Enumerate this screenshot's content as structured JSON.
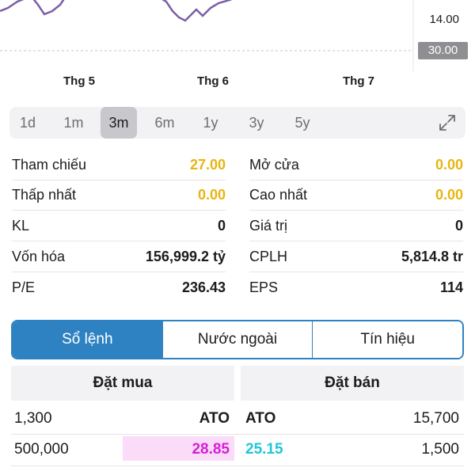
{
  "chart": {
    "y_labels": [
      "14.00"
    ],
    "last_price_tag": "30.00",
    "x_labels": [
      "Thg 5",
      "Thg 6",
      "Thg 7"
    ],
    "line_color": "#7b5ea7"
  },
  "timeframes": {
    "items": [
      "1d",
      "1m",
      "3m",
      "6m",
      "1y",
      "3y",
      "5y"
    ],
    "active": "3m",
    "expand_icon": "expand-arrows-icon"
  },
  "stats": {
    "left": [
      {
        "label": "Tham chiếu",
        "value": "27.00",
        "color": "yellow"
      },
      {
        "label": "Thấp nhất",
        "value": "0.00",
        "color": "yellow"
      },
      {
        "label": "KL",
        "value": "0",
        "color": "default"
      },
      {
        "label": "Vốn hóa",
        "value": "156,999.2 tỷ",
        "color": "default"
      },
      {
        "label": "P/E",
        "value": "236.43",
        "color": "default"
      }
    ],
    "right": [
      {
        "label": "Mở cửa",
        "value": "0.00",
        "color": "yellow"
      },
      {
        "label": "Cao nhất",
        "value": "0.00",
        "color": "yellow"
      },
      {
        "label": "Giá trị",
        "value": "0",
        "color": "default"
      },
      {
        "label": "CPLH",
        "value": "5,814.8 tr",
        "color": "default"
      },
      {
        "label": "EPS",
        "value": "114",
        "color": "default"
      }
    ]
  },
  "tabs": {
    "items": [
      "Sổ lệnh",
      "Nước ngoài",
      "Tín hiệu"
    ],
    "active_index": 0
  },
  "order_book": {
    "buy_header": "Đặt mua",
    "sell_header": "Đặt bán",
    "rows": [
      {
        "buy_vol": "1,300",
        "buy_price": "ATO",
        "sell_price": "ATO",
        "sell_vol": "15,700",
        "buy_color": "#1c1c1e",
        "sell_color": "#1c1c1e",
        "buy_highlight": false
      },
      {
        "buy_vol": "500,000",
        "buy_price": "28.85",
        "sell_price": "25.15",
        "sell_vol": "1,500",
        "buy_color": "#d61fd6",
        "sell_color": "#1fc7d4",
        "buy_highlight": true
      }
    ]
  }
}
